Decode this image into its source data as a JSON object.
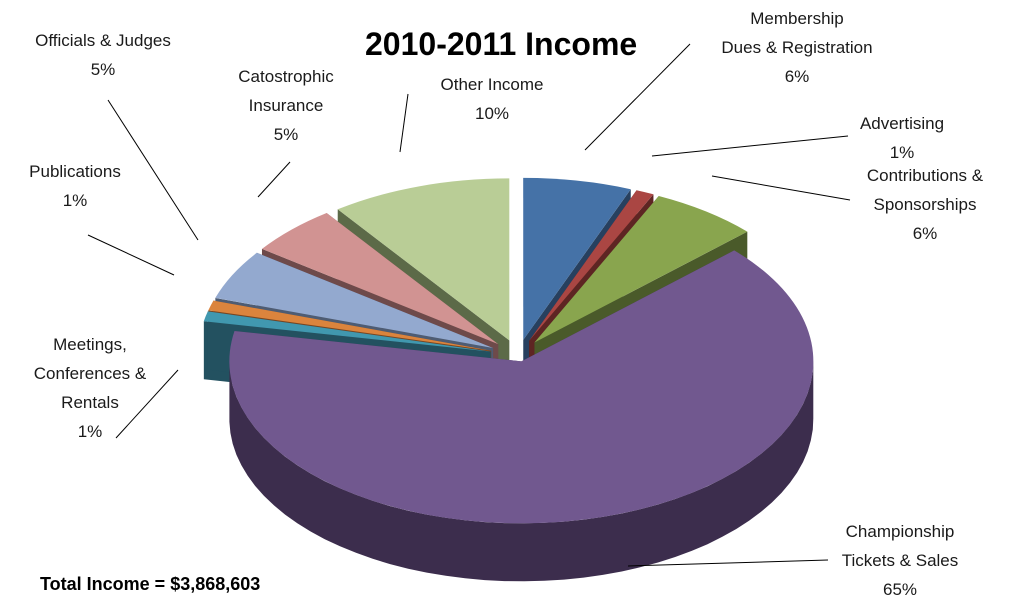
{
  "chart_data": {
    "type": "pie",
    "title": "2010-2011 Income",
    "footer": "Total Income = $3,868,603",
    "slices": [
      {
        "label": [
          "Membership",
          "Dues & Registration"
        ],
        "value": 6,
        "display": "6%",
        "color": "#4572A7",
        "side": "#27405F"
      },
      {
        "label": [
          "Advertising"
        ],
        "value": 1,
        "display": "1%",
        "color": "#AA4643",
        "side": "#5E2523"
      },
      {
        "label": [
          "Contributions &",
          "Sponsorships"
        ],
        "value": 6,
        "display": "6%",
        "color": "#89A54E",
        "side": "#4A5A2A"
      },
      {
        "label": [
          "Championship",
          "Tickets & Sales"
        ],
        "value": 65,
        "display": "65%",
        "color": "#71588F",
        "side": "#3C2D4D"
      },
      {
        "label": [
          "Meetings,",
          "Conferences &",
          "Rentals"
        ],
        "value": 1,
        "display": "1%",
        "color": "#4198AF",
        "side": "#235160"
      },
      {
        "label": [
          "Publications"
        ],
        "value": 1,
        "display": "1%",
        "color": "#DB843D",
        "side": "#7A4620"
      },
      {
        "label": [
          "Officials & Judges"
        ],
        "value": 5,
        "display": "5%",
        "color": "#93A9CF",
        "side": "#4E5C73"
      },
      {
        "label": [
          "Catostrophic",
          "Insurance"
        ],
        "value": 5,
        "display": "5%",
        "color": "#D19392",
        "side": "#6E4A4A"
      },
      {
        "label": [
          "Other Income"
        ],
        "value": 10,
        "display": "10%",
        "color": "#B9CD96",
        "side": "#5C6A48"
      }
    ]
  }
}
